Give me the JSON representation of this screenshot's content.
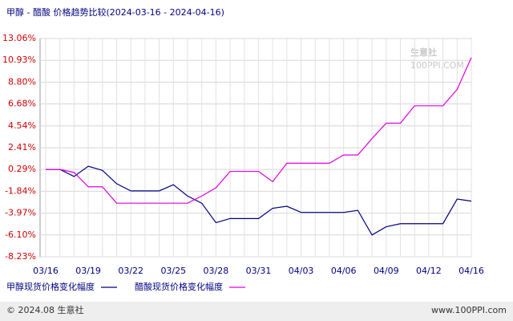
{
  "chart_data": {
    "type": "line",
    "title": "甲醇 - 醋酸 价格趋势比较(2024-03-16 - 2024-04-16)",
    "watermark": "生意社",
    "watermark_sub": "100PPI.COM",
    "footer_left": "© 2024.08 生意社",
    "footer_right": "www.100PPI.com",
    "categories": [
      "03/16",
      null,
      null,
      "03/19",
      null,
      null,
      "03/22",
      null,
      null,
      "03/25",
      null,
      null,
      "03/28",
      null,
      null,
      "03/31",
      null,
      null,
      "04/03",
      null,
      null,
      "04/06",
      null,
      null,
      "04/09",
      null,
      null,
      "04/12",
      null,
      null,
      "04/16"
    ],
    "series": [
      {
        "name": "甲醇现货价格变化幅度",
        "color": "#000080",
        "values": [
          0.29,
          0.29,
          -0.4,
          0.6,
          0.2,
          -1.1,
          -1.8,
          -1.8,
          -1.8,
          -1.2,
          -2.3,
          -3.0,
          -4.9,
          -4.5,
          -4.5,
          -4.5,
          -3.5,
          -3.3,
          -3.9,
          -3.9,
          -3.9,
          -3.9,
          -3.7,
          -6.1,
          -5.3,
          -5.0,
          -5.0,
          -5.0,
          -5.0,
          -2.6,
          -2.8
        ]
      },
      {
        "name": "醋酸现货价格变化幅度",
        "color": "#e000e0",
        "values": [
          0.29,
          0.29,
          0.0,
          -1.4,
          -1.4,
          -3.0,
          -3.0,
          -3.0,
          -3.0,
          -3.0,
          -3.0,
          -2.3,
          -1.5,
          0.1,
          0.1,
          0.1,
          -0.9,
          0.9,
          0.9,
          0.9,
          0.9,
          1.7,
          1.7,
          3.3,
          4.8,
          4.8,
          6.5,
          6.5,
          6.5,
          8.1,
          11.2
        ]
      }
    ],
    "ylim": [
      -8.23,
      13.06
    ],
    "yticks": [
      {
        "value": 13.06,
        "label": "13.06%"
      },
      {
        "value": 10.93,
        "label": "10.93%"
      },
      {
        "value": 8.8,
        "label": "8.80%"
      },
      {
        "value": 6.68,
        "label": "6.68%"
      },
      {
        "value": 4.54,
        "label": "4.54%"
      },
      {
        "value": 2.41,
        "label": "2.41%"
      },
      {
        "value": 0.29,
        "label": "0.29%"
      },
      {
        "value": -1.84,
        "label": "-1.84%"
      },
      {
        "value": -3.97,
        "label": "-3.97%"
      },
      {
        "value": -6.1,
        "label": "-6.10%"
      },
      {
        "value": -8.23,
        "label": "-8.23%"
      }
    ],
    "ytick_color": "#cc0000",
    "grid": true
  }
}
